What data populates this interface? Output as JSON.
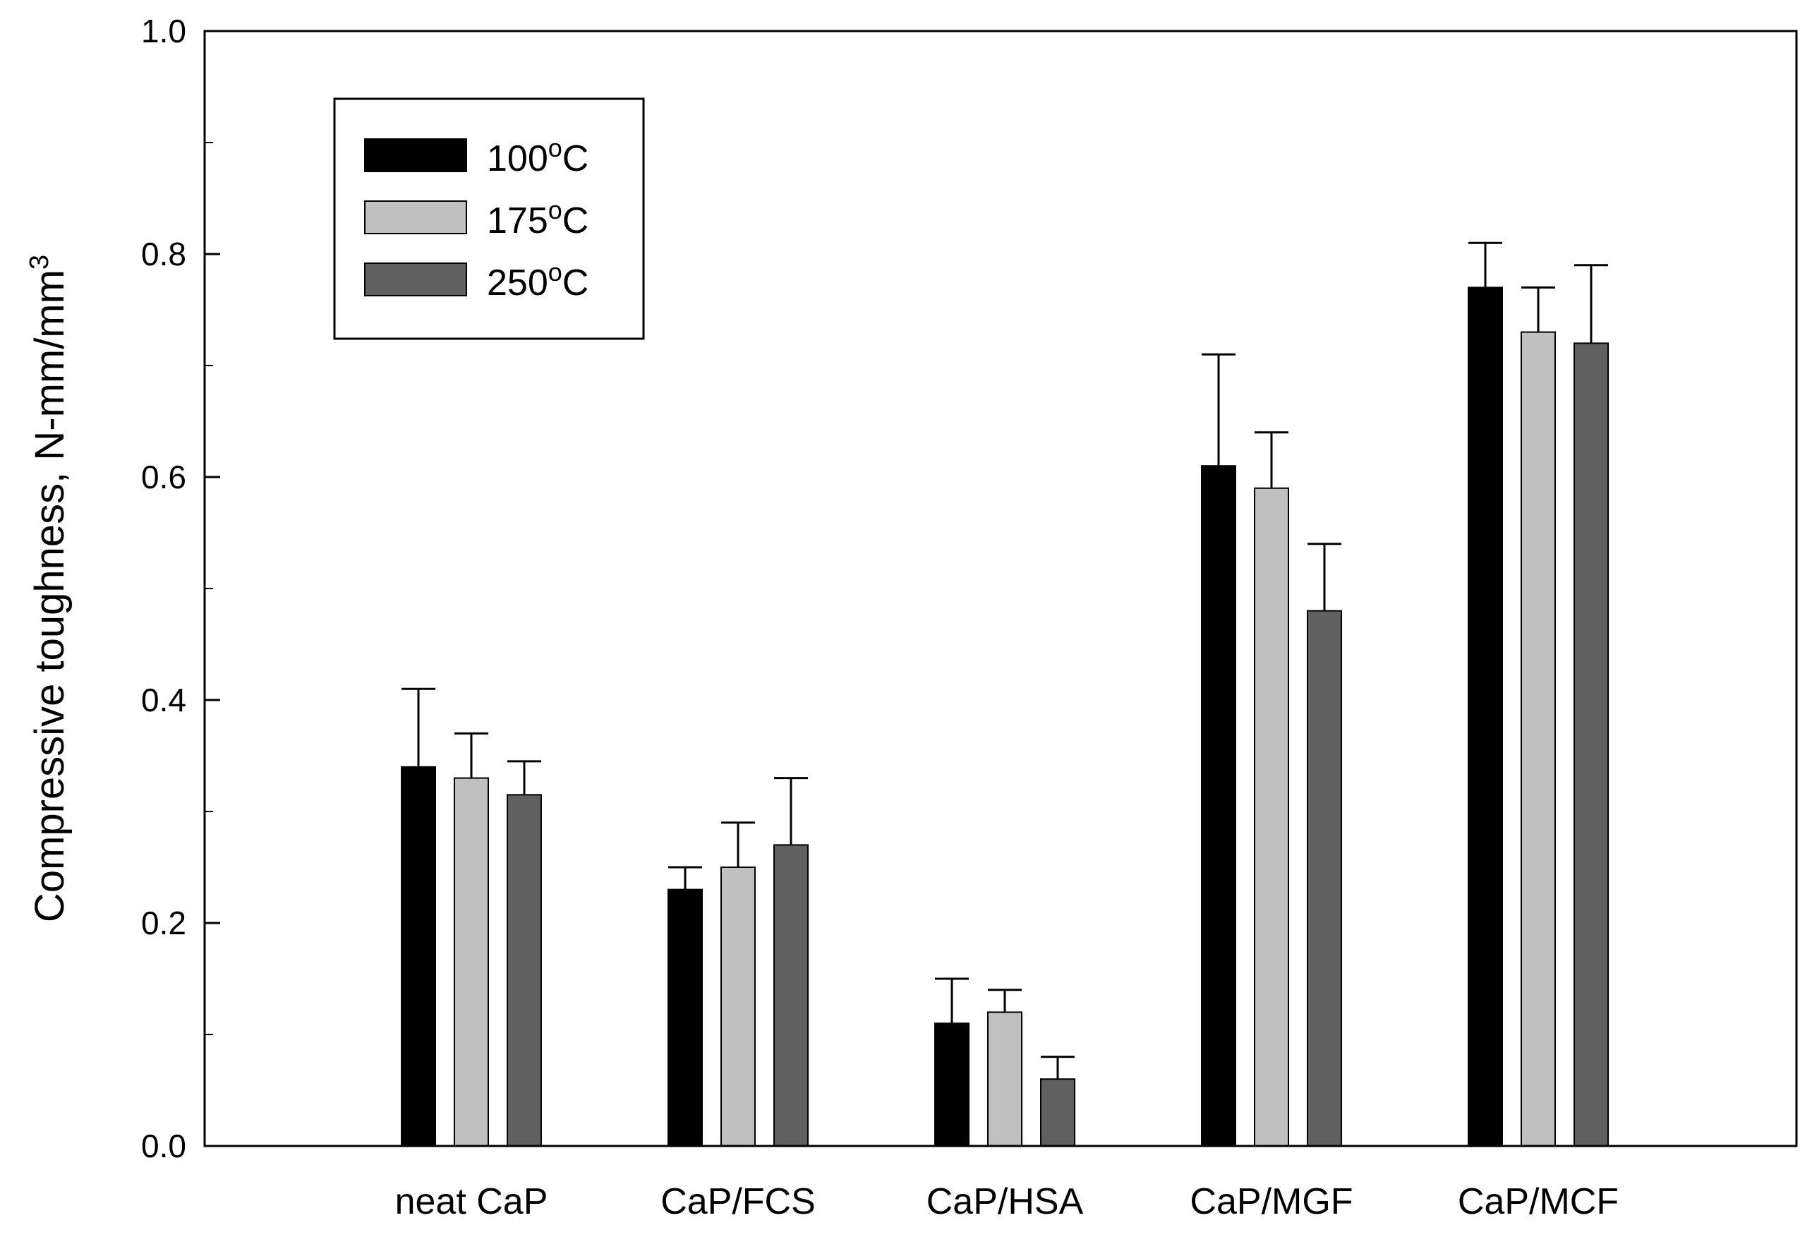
{
  "chart_data": {
    "type": "bar",
    "title": "",
    "xlabel": "",
    "ylabel": "Compressive toughness, N-mm/mm",
    "ylabel_superscript": "3",
    "ylim": [
      0,
      1.0
    ],
    "y_major_ticks": [
      0.0,
      0.2,
      0.4,
      0.6,
      0.8,
      1.0
    ],
    "y_tick_labels": [
      "0.0",
      "0.2",
      "0.4",
      "0.6",
      "0.8",
      "1.0"
    ],
    "categories": [
      "neat CaP",
      "CaP/FCS",
      "CaP/HSA",
      "CaP/MGF",
      "CaP/MCF"
    ],
    "series": [
      {
        "name": "100",
        "unit": "C",
        "degree": "o",
        "color": "#000000",
        "values": [
          0.34,
          0.23,
          0.11,
          0.61,
          0.77
        ],
        "errors": [
          0.07,
          0.02,
          0.04,
          0.1,
          0.04
        ]
      },
      {
        "name": "175",
        "unit": "C",
        "degree": "o",
        "color": "#c0c0c0",
        "values": [
          0.33,
          0.25,
          0.12,
          0.59,
          0.73
        ],
        "errors": [
          0.04,
          0.04,
          0.02,
          0.05,
          0.04
        ]
      },
      {
        "name": "250",
        "unit": "C",
        "degree": "o",
        "color": "#606060",
        "values": [
          0.315,
          0.27,
          0.06,
          0.48,
          0.72
        ],
        "errors": [
          0.03,
          0.06,
          0.02,
          0.06,
          0.07
        ]
      }
    ],
    "legend_position": "top-left"
  }
}
